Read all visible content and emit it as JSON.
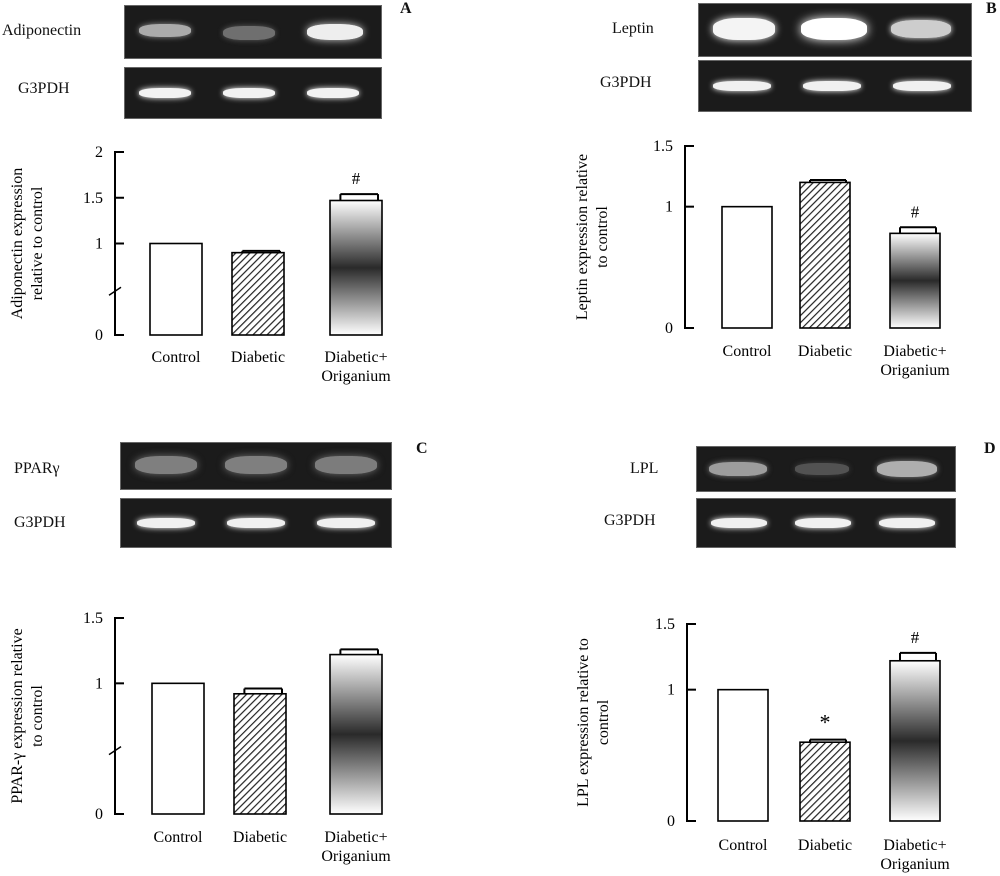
{
  "panels": [
    {
      "id": "A",
      "label": "A",
      "gel_top": "Adiponectin",
      "gel_bottom": "G3PDH",
      "chart_data": {
        "type": "bar",
        "ylabel_lines": [
          "Adiponectin expression",
          "relative to control"
        ],
        "categories": [
          "Control",
          "Diabetic",
          "Diabetic+\nOriganium"
        ],
        "category_lines": [
          [
            "Control"
          ],
          [
            "Diabetic"
          ],
          [
            "Diabetic+",
            "Origanium"
          ]
        ],
        "values": [
          1.0,
          0.9,
          1.47
        ],
        "errors": [
          0,
          0.02,
          0.07
        ],
        "annotations": [
          "",
          "",
          "#"
        ],
        "yticks": [
          0,
          1,
          1.5,
          2
        ],
        "ytick_labels": [
          "0",
          "1",
          "1.5",
          "2"
        ],
        "ylim": [
          0,
          2
        ],
        "axis_break": true,
        "grid": false,
        "bar_styles": [
          "white",
          "hatch",
          "gradient"
        ]
      }
    },
    {
      "id": "B",
      "label": "B",
      "gel_top": "Leptin",
      "gel_bottom": "G3PDH",
      "chart_data": {
        "type": "bar",
        "ylabel_lines": [
          "Leptin expression relative",
          "to control"
        ],
        "categories": [
          "Control",
          "Diabetic",
          "Diabetic+\nOriganium"
        ],
        "category_lines": [
          [
            "Control"
          ],
          [
            "Diabetic"
          ],
          [
            "Diabetic+",
            "Origanium"
          ]
        ],
        "values": [
          1.0,
          1.2,
          0.78
        ],
        "errors": [
          0,
          0.02,
          0.05
        ],
        "annotations": [
          "",
          "",
          "#"
        ],
        "yticks": [
          0,
          1,
          1.5
        ],
        "ytick_labels": [
          "0",
          "1",
          "1.5"
        ],
        "ylim": [
          0,
          1.5
        ],
        "axis_break": false,
        "grid": false,
        "bar_styles": [
          "white",
          "hatch",
          "gradient"
        ]
      }
    },
    {
      "id": "C",
      "label": "C",
      "gel_top": "PPARγ",
      "gel_bottom": "G3PDH",
      "chart_data": {
        "type": "bar",
        "ylabel_lines": [
          "PPAR-γ expression relative",
          "to control"
        ],
        "categories": [
          "Control",
          "Diabetic",
          "Diabetic+\nOriganium"
        ],
        "category_lines": [
          [
            "Control"
          ],
          [
            "Diabetic"
          ],
          [
            "Diabetic+",
            "Origanium"
          ]
        ],
        "values": [
          1.0,
          0.92,
          1.22
        ],
        "errors": [
          0,
          0.04,
          0.04
        ],
        "annotations": [
          "",
          "",
          ""
        ],
        "yticks": [
          0,
          1,
          1.5
        ],
        "ytick_labels": [
          "0",
          "1",
          "1.5"
        ],
        "ylim": [
          0,
          1.5
        ],
        "axis_break": true,
        "grid": false,
        "bar_styles": [
          "white",
          "hatch",
          "gradient"
        ]
      }
    },
    {
      "id": "D",
      "label": "D",
      "gel_top": "LPL",
      "gel_bottom": "G3PDH",
      "chart_data": {
        "type": "bar",
        "ylabel_lines": [
          "LPL expression relative to",
          "control"
        ],
        "categories": [
          "Control",
          "Diabetic",
          "Diabetic+\nOriganium"
        ],
        "category_lines": [
          [
            "Control"
          ],
          [
            "Diabetic"
          ],
          [
            "Diabetic+",
            "Origanium"
          ]
        ],
        "values": [
          1.0,
          0.6,
          1.22
        ],
        "errors": [
          0,
          0.02,
          0.06
        ],
        "annotations": [
          "",
          "*",
          "#"
        ],
        "yticks": [
          0,
          1,
          1.5
        ],
        "ytick_labels": [
          "0",
          "1",
          "1.5"
        ],
        "ylim": [
          0,
          1.5
        ],
        "axis_break": false,
        "grid": false,
        "bar_styles": [
          "white",
          "hatch",
          "gradient"
        ]
      }
    }
  ]
}
